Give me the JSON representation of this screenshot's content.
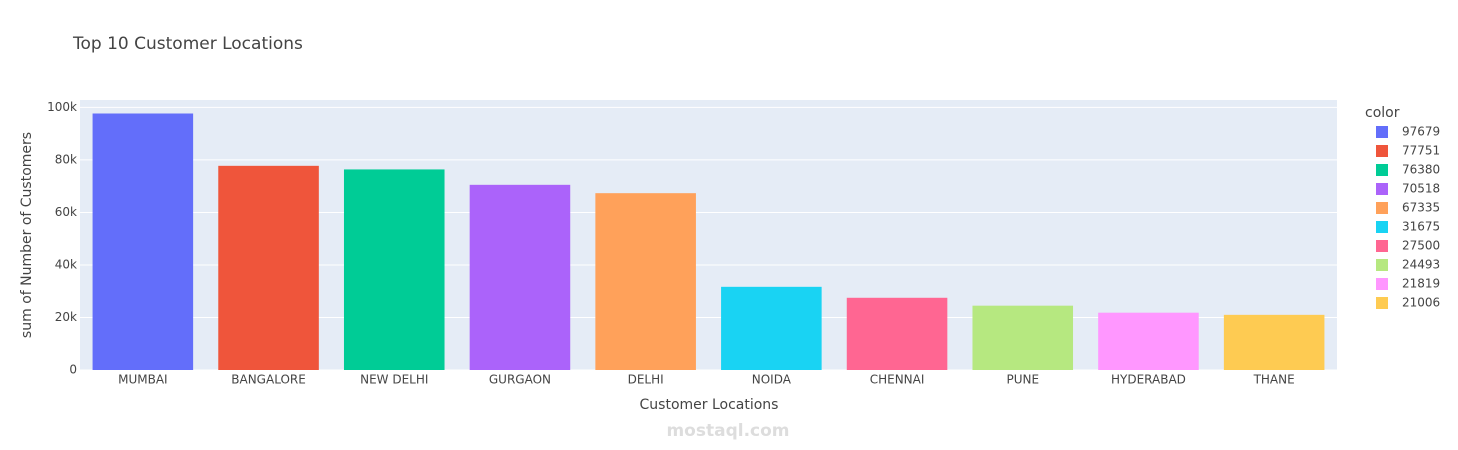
{
  "chart_data": {
    "type": "bar",
    "title": "Top 10 Customer Locations",
    "x_label": "Customer Locations",
    "y_label": "sum of Number of Customers",
    "legend_title": "color",
    "watermark": "mostaql.com",
    "categories": [
      "MUMBAI",
      "BANGALORE",
      "NEW DELHI",
      "GURGAON",
      "DELHI",
      "NOIDA",
      "CHENNAI",
      "PUNE",
      "HYDERABAD",
      "THANE"
    ],
    "values": [
      97679,
      77751,
      76380,
      70518,
      67335,
      31675,
      27500,
      24493,
      21819,
      21006
    ],
    "colors": [
      "#636efa",
      "#ef553b",
      "#00cc96",
      "#ab63fa",
      "#ffa15a",
      "#19d3f3",
      "#ff6692",
      "#b6e880",
      "#ff97ff",
      "#fecb52"
    ],
    "ylim": [
      0,
      102820
    ],
    "yticks": [
      0,
      {
        "value": 20000,
        "label": "20k"
      },
      {
        "value": 40000,
        "label": "40k"
      },
      {
        "value": 60000,
        "label": "60k"
      },
      {
        "value": 80000,
        "label": "80k"
      },
      {
        "value": 100000,
        "label": "100k"
      }
    ],
    "grid": true
  }
}
